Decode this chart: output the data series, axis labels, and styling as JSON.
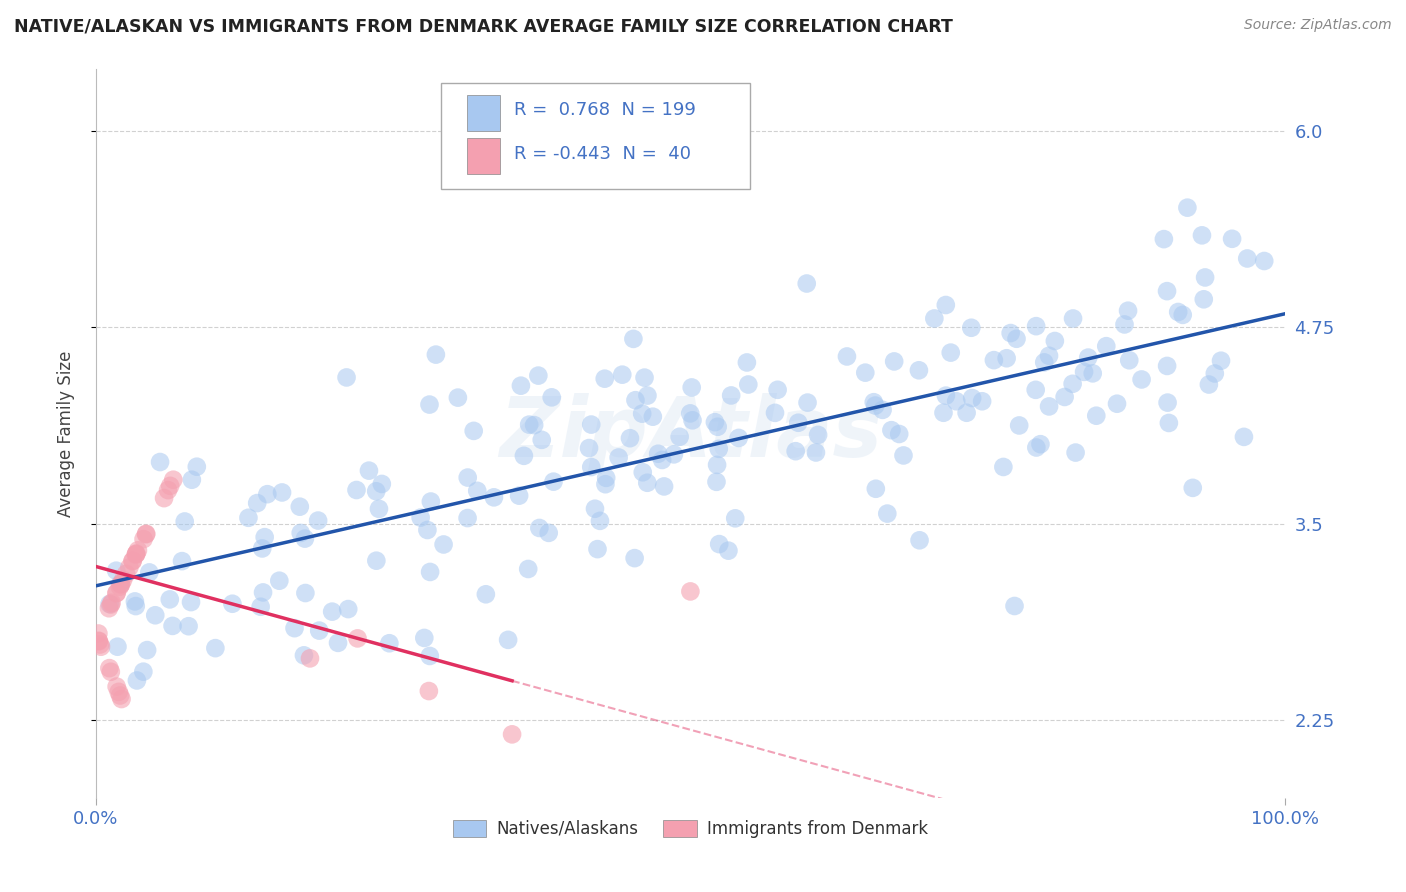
{
  "title": "NATIVE/ALASKAN VS IMMIGRANTS FROM DENMARK AVERAGE FAMILY SIZE CORRELATION CHART",
  "source": "Source: ZipAtlas.com",
  "ylabel": "Average Family Size",
  "xlim": [
    0.0,
    1.0
  ],
  "ylim": [
    1.75,
    6.4
  ],
  "yticks": [
    2.25,
    3.5,
    4.75,
    6.0
  ],
  "xticks": [
    0.0,
    1.0
  ],
  "xticklabels": [
    "0.0%",
    "100.0%"
  ],
  "blue_R": 0.768,
  "blue_N": 199,
  "pink_R": -0.443,
  "pink_N": 40,
  "blue_color": "#A8C8F0",
  "pink_color": "#F4A0B0",
  "blue_line_color": "#2255AA",
  "pink_line_color": "#E03060",
  "watermark": "ZipAtlas",
  "legend_blue_label": "Natives/Alaskans",
  "legend_pink_label": "Immigrants from Denmark",
  "background_color": "#FFFFFF",
  "grid_color": "#CCCCCC",
  "tick_color": "#4472C4",
  "title_color": "#222222",
  "source_color": "#888888"
}
